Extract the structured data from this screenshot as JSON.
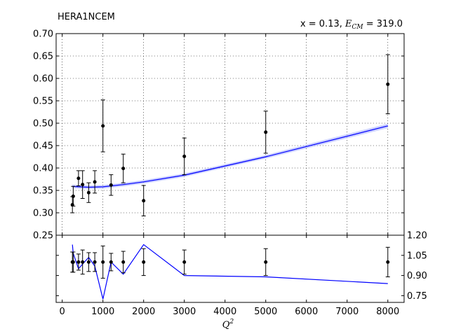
{
  "chart_data": {
    "type": "scatter",
    "title_left": "HERA1NCEM",
    "title_right_prefix": "x = 0.13, ",
    "title_right_ecm_symbol": "E",
    "title_right_ecm_sub": "CM",
    "title_right_suffix": " = 319.0",
    "xlabel_base": "Q",
    "xlabel_sup": "2",
    "xlim": [
      -150,
      8400
    ],
    "x_ticks": [
      "0",
      "1000",
      "2000",
      "3000",
      "4000",
      "5000",
      "6000",
      "7000",
      "8000"
    ],
    "top_panel": {
      "ylim": [
        0.25,
        0.7
      ],
      "y_ticks": [
        "0.25",
        "0.30",
        "0.35",
        "0.40",
        "0.45",
        "0.50",
        "0.55",
        "0.60",
        "0.65",
        "0.70"
      ],
      "grid": true,
      "data": [
        {
          "x": 250,
          "y": 0.318,
          "err": 0.018
        },
        {
          "x": 270,
          "y": 0.337,
          "err": 0.022
        },
        {
          "x": 400,
          "y": 0.377,
          "err": 0.017
        },
        {
          "x": 500,
          "y": 0.363,
          "err": 0.031
        },
        {
          "x": 650,
          "y": 0.345,
          "err": 0.022
        },
        {
          "x": 800,
          "y": 0.369,
          "err": 0.025
        },
        {
          "x": 1000,
          "y": 0.494,
          "err": 0.058
        },
        {
          "x": 1200,
          "y": 0.362,
          "err": 0.023
        },
        {
          "x": 1500,
          "y": 0.399,
          "err": 0.032
        },
        {
          "x": 2000,
          "y": 0.327,
          "err": 0.034
        },
        {
          "x": 3000,
          "y": 0.426,
          "err": 0.041
        },
        {
          "x": 5000,
          "y": 0.48,
          "err": 0.047
        },
        {
          "x": 8000,
          "y": 0.587,
          "err": 0.066
        }
      ],
      "theory": {
        "color": "#0000ff",
        "band_color": "#aab2ff",
        "x": [
          250,
          400,
          650,
          1000,
          1500,
          2000,
          3000,
          5000,
          8000
        ],
        "y": [
          0.359,
          0.358,
          0.357,
          0.358,
          0.363,
          0.369,
          0.384,
          0.425,
          0.494
        ],
        "err": [
          0.004,
          0.004,
          0.004,
          0.004,
          0.004,
          0.004,
          0.004,
          0.004,
          0.005
        ]
      }
    },
    "bottom_panel": {
      "ylim": [
        0.7,
        1.2
      ],
      "y_ticks": [
        "0.75",
        "0.90",
        "1.05",
        "1.20"
      ],
      "grid": false,
      "data": [
        {
          "x": 250,
          "y": 1.0,
          "err": 0.075
        },
        {
          "x": 270,
          "y": 1.0,
          "err": 0.075
        },
        {
          "x": 400,
          "y": 1.0,
          "err": 0.06
        },
        {
          "x": 500,
          "y": 1.0,
          "err": 0.09
        },
        {
          "x": 650,
          "y": 1.0,
          "err": 0.07
        },
        {
          "x": 800,
          "y": 1.0,
          "err": 0.07
        },
        {
          "x": 1000,
          "y": 1.0,
          "err": 0.12
        },
        {
          "x": 1200,
          "y": 1.0,
          "err": 0.065
        },
        {
          "x": 1500,
          "y": 1.0,
          "err": 0.08
        },
        {
          "x": 2000,
          "y": 1.0,
          "err": 0.1
        },
        {
          "x": 3000,
          "y": 1.0,
          "err": 0.09
        },
        {
          "x": 5000,
          "y": 1.0,
          "err": 0.1
        },
        {
          "x": 8000,
          "y": 1.0,
          "err": 0.11
        }
      ],
      "theory": {
        "color": "#0000ff",
        "x": [
          250,
          270,
          400,
          500,
          650,
          800,
          1000,
          1200,
          1500,
          2000,
          3000,
          5000,
          8000
        ],
        "y": [
          1.13,
          1.065,
          0.95,
          0.985,
          1.035,
          0.97,
          0.725,
          1.0,
          0.91,
          1.13,
          0.9,
          0.89,
          0.84
        ]
      }
    }
  }
}
